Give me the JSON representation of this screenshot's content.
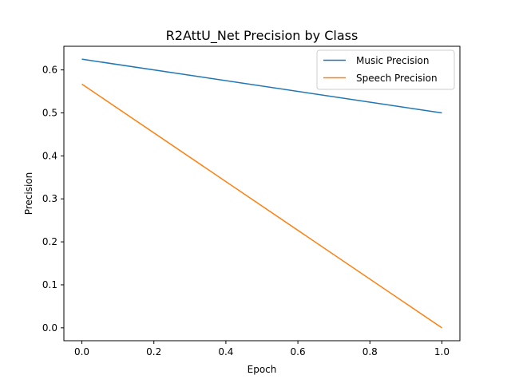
{
  "chart_data": {
    "type": "line",
    "title": "R2AttU_Net Precision by Class",
    "xlabel": "Epoch",
    "ylabel": "Precision",
    "x": [
      0,
      1
    ],
    "series": [
      {
        "name": "Music Precision",
        "values": [
          0.625,
          0.5
        ],
        "color": "#1f77b4"
      },
      {
        "name": "Speech Precision",
        "values": [
          0.567,
          0.0
        ],
        "color": "#ff7f0e"
      }
    ],
    "xlim": [
      -0.05,
      1.05
    ],
    "ylim": [
      -0.03,
      0.655
    ],
    "xticks": [
      0.0,
      0.2,
      0.4,
      0.6,
      0.8,
      1.0
    ],
    "xtick_labels": [
      "0.0",
      "0.2",
      "0.4",
      "0.6",
      "0.8",
      "1.0"
    ],
    "yticks": [
      0.0,
      0.1,
      0.2,
      0.3,
      0.4,
      0.5,
      0.6
    ],
    "ytick_labels": [
      "0.0",
      "0.1",
      "0.2",
      "0.3",
      "0.4",
      "0.5",
      "0.6"
    ],
    "grid": false,
    "legend": "top-right"
  }
}
